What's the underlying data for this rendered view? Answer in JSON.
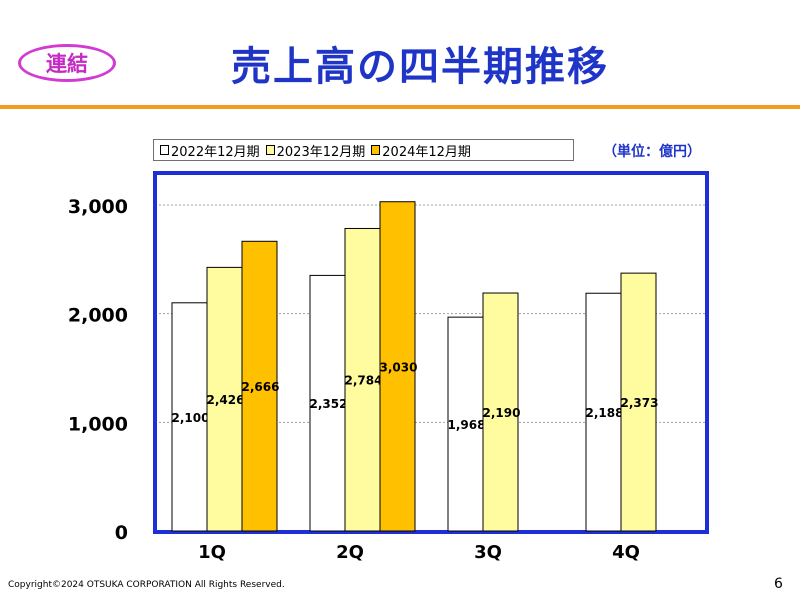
{
  "badge": {
    "label": "連結"
  },
  "title": "売上高の四半期推移",
  "unit_label": "（単位：億円）",
  "footer": {
    "copyright": "Copyright©2024 OTSUKA CORPORATION All Rights Reserved.",
    "page_number": "6"
  },
  "chart_data": {
    "type": "bar",
    "categories": [
      "1Q",
      "2Q",
      "3Q",
      "4Q"
    ],
    "series": [
      {
        "name": "2022年12月期",
        "color": "#ffffff",
        "values": [
          2100,
          2352,
          1968,
          2188
        ]
      },
      {
        "name": "2023年12月期",
        "color": "#fffca0",
        "values": [
          2426,
          2784,
          2190,
          2373
        ]
      },
      {
        "name": "2024年12月期",
        "color": "#ffc000",
        "values": [
          2666,
          3030,
          null,
          null
        ]
      }
    ],
    "data_labels": [
      [
        "2,100",
        "2,352",
        "1,968",
        "2,188"
      ],
      [
        "2,426",
        "2,784",
        "2,190",
        "2,373"
      ],
      [
        "2,666",
        "3,030",
        null,
        null
      ]
    ],
    "yticks": [
      {
        "value": 0,
        "label": "0"
      },
      {
        "value": 1000,
        "label": "1,000"
      },
      {
        "value": 2000,
        "label": "2,000"
      },
      {
        "value": 3000,
        "label": "3,000"
      }
    ],
    "ylim": [
      0,
      3000
    ],
    "grid": true,
    "legend_position": "top",
    "frame_color": "#1f2fd6"
  }
}
